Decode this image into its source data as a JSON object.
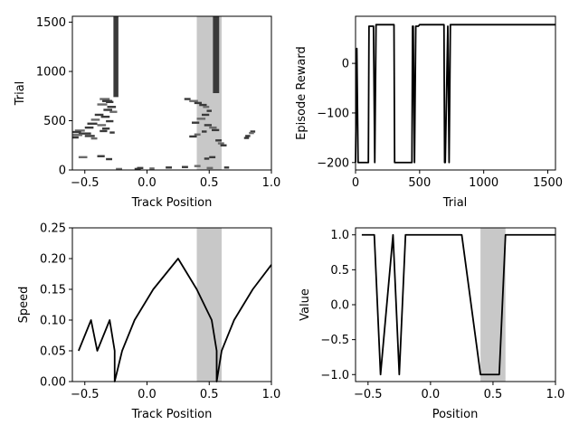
{
  "colors": {
    "line": "#000000",
    "shade": "#c8c8c8",
    "raster_dark": "#3a3a3a",
    "raster_mid": "#6a6a6a"
  },
  "chart_data": [
    {
      "id": "trial_raster",
      "type": "raster",
      "title": "",
      "xlabel": "Track Position",
      "ylabel": "Trial",
      "xlim": [
        -0.6,
        1.0
      ],
      "ylim": [
        0,
        1560
      ],
      "xticks": [
        -0.5,
        0.0,
        0.5,
        1.0
      ],
      "xtick_labels": [
        "−0.5",
        "0.0",
        "0.5",
        "1.0"
      ],
      "yticks": [
        0,
        500,
        1000,
        1500
      ],
      "ytick_labels": [
        "0",
        "500",
        "1000",
        "1500"
      ],
      "shaded_region": [
        0.4,
        0.6
      ],
      "grid": false,
      "solid_columns": [
        {
          "x": [
            -0.27,
            -0.23
          ],
          "y": [
            740,
            1560
          ]
        },
        {
          "x": [
            0.53,
            0.58
          ],
          "y": [
            780,
            1560
          ]
        }
      ],
      "segments": [
        [
          -0.38,
          -0.3,
          720
        ],
        [
          -0.36,
          -0.28,
          700
        ],
        [
          -0.33,
          -0.27,
          690
        ],
        [
          -0.4,
          -0.32,
          665
        ],
        [
          -0.32,
          -0.25,
          640
        ],
        [
          -0.35,
          -0.28,
          610
        ],
        [
          -0.3,
          -0.24,
          590
        ],
        [
          -0.42,
          -0.35,
          560
        ],
        [
          -0.37,
          -0.3,
          540
        ],
        [
          -0.45,
          -0.38,
          510
        ],
        [
          -0.33,
          -0.27,
          495
        ],
        [
          -0.48,
          -0.4,
          470
        ],
        [
          -0.4,
          -0.33,
          455
        ],
        [
          -0.5,
          -0.43,
          430
        ],
        [
          -0.36,
          -0.3,
          420
        ],
        [
          -0.58,
          -0.5,
          400
        ],
        [
          -0.6,
          -0.53,
          385
        ],
        [
          -0.55,
          -0.45,
          370
        ],
        [
          -0.6,
          -0.52,
          355
        ],
        [
          -0.5,
          -0.42,
          345
        ],
        [
          -0.6,
          -0.55,
          330
        ],
        [
          -0.45,
          -0.4,
          320
        ],
        [
          -0.38,
          -0.32,
          395
        ],
        [
          -0.3,
          -0.26,
          380
        ],
        [
          -0.55,
          -0.48,
          130
        ],
        [
          -0.4,
          -0.34,
          140
        ],
        [
          -0.33,
          -0.28,
          110
        ],
        [
          -0.25,
          -0.2,
          10
        ],
        [
          -0.08,
          -0.03,
          20
        ],
        [
          -0.1,
          -0.05,
          10
        ],
        [
          0.02,
          0.06,
          15
        ],
        [
          0.15,
          0.2,
          25
        ],
        [
          0.28,
          0.33,
          30
        ],
        [
          0.38,
          0.43,
          40
        ],
        [
          0.46,
          0.5,
          115
        ],
        [
          0.5,
          0.55,
          130
        ],
        [
          0.48,
          0.53,
          20
        ],
        [
          0.62,
          0.66,
          25
        ],
        [
          0.3,
          0.35,
          720
        ],
        [
          0.34,
          0.41,
          700
        ],
        [
          0.38,
          0.44,
          680
        ],
        [
          0.42,
          0.48,
          660
        ],
        [
          0.45,
          0.5,
          640
        ],
        [
          0.48,
          0.52,
          600
        ],
        [
          0.44,
          0.5,
          560
        ],
        [
          0.4,
          0.47,
          520
        ],
        [
          0.36,
          0.42,
          480
        ],
        [
          0.46,
          0.52,
          455
        ],
        [
          0.5,
          0.56,
          430
        ],
        [
          0.52,
          0.58,
          405
        ],
        [
          0.44,
          0.48,
          390
        ],
        [
          0.38,
          0.43,
          360
        ],
        [
          0.34,
          0.4,
          340
        ],
        [
          0.55,
          0.6,
          300
        ],
        [
          0.57,
          0.62,
          270
        ],
        [
          0.59,
          0.64,
          250
        ],
        [
          0.83,
          0.87,
          390
        ],
        [
          0.82,
          0.86,
          375
        ],
        [
          0.79,
          0.83,
          345
        ],
        [
          0.78,
          0.82,
          325
        ]
      ]
    },
    {
      "id": "episode_reward",
      "type": "line",
      "title": "",
      "xlabel": "Trial",
      "ylabel": "Episode Reward",
      "xlim": [
        0,
        1560
      ],
      "ylim": [
        -215,
        95
      ],
      "xticks": [
        0,
        500,
        1000,
        1500
      ],
      "xtick_labels": [
        "0",
        "500",
        "1000",
        "1500"
      ],
      "yticks": [
        -200,
        -100,
        0
      ],
      "ytick_labels": [
        "−200",
        "−100",
        "0"
      ],
      "grid": false,
      "x": [
        0,
        10,
        20,
        30,
        40,
        55,
        100,
        105,
        110,
        140,
        150,
        160,
        300,
        305,
        310,
        330,
        440,
        445,
        450,
        460,
        470,
        480,
        490,
        500,
        540,
        690,
        695,
        700,
        720,
        730,
        740,
        1560
      ],
      "y": [
        -200,
        30,
        -200,
        -200,
        -200,
        -200,
        -200,
        75,
        75,
        75,
        -200,
        78,
        78,
        -200,
        -200,
        -200,
        -200,
        75,
        75,
        -200,
        75,
        75,
        75,
        78,
        78,
        78,
        -200,
        -200,
        75,
        -200,
        78,
        78
      ]
    },
    {
      "id": "speed",
      "type": "line",
      "title": "",
      "xlabel": "Track Position",
      "ylabel": "Speed",
      "xlim": [
        -0.6,
        1.0
      ],
      "ylim": [
        0.0,
        0.25
      ],
      "xticks": [
        -0.5,
        0.0,
        0.5,
        1.0
      ],
      "xtick_labels": [
        "−0.5",
        "0.0",
        "0.5",
        "1.0"
      ],
      "yticks": [
        0.0,
        0.05,
        0.1,
        0.15,
        0.2,
        0.25
      ],
      "ytick_labels": [
        "0.00",
        "0.05",
        "0.10",
        "0.15",
        "0.20",
        "0.25"
      ],
      "shaded_region": [
        0.4,
        0.6
      ],
      "grid": false,
      "x": [
        -0.55,
        -0.45,
        -0.4,
        -0.3,
        -0.26,
        -0.26,
        -0.2,
        -0.1,
        0.05,
        0.25,
        0.4,
        0.52,
        0.56,
        0.56,
        0.6,
        0.7,
        0.85,
        1.0
      ],
      "y": [
        0.05,
        0.1,
        0.05,
        0.1,
        0.05,
        0.0,
        0.05,
        0.1,
        0.15,
        0.2,
        0.15,
        0.1,
        0.05,
        0.0,
        0.05,
        0.1,
        0.15,
        0.19
      ]
    },
    {
      "id": "value",
      "type": "line",
      "title": "",
      "xlabel": "Position",
      "ylabel": "Value",
      "xlim": [
        -0.6,
        1.0
      ],
      "ylim": [
        -1.1,
        1.1
      ],
      "xticks": [
        -0.5,
        0.0,
        0.5,
        1.0
      ],
      "xtick_labels": [
        "−0.5",
        "0.0",
        "0.5",
        "1.0"
      ],
      "yticks": [
        -1.0,
        -0.5,
        0.0,
        0.5,
        1.0
      ],
      "ytick_labels": [
        "−1.0",
        "−0.5",
        "0.0",
        "0.5",
        "1.0"
      ],
      "shaded_region": [
        0.4,
        0.6
      ],
      "grid": false,
      "x": [
        -0.55,
        -0.45,
        -0.4,
        -0.3,
        -0.25,
        -0.2,
        0.25,
        0.4,
        0.55,
        0.6,
        1.0
      ],
      "y": [
        1.0,
        1.0,
        -1.0,
        1.0,
        -1.0,
        1.0,
        1.0,
        -1.0,
        -1.0,
        1.0,
        1.0
      ]
    }
  ]
}
